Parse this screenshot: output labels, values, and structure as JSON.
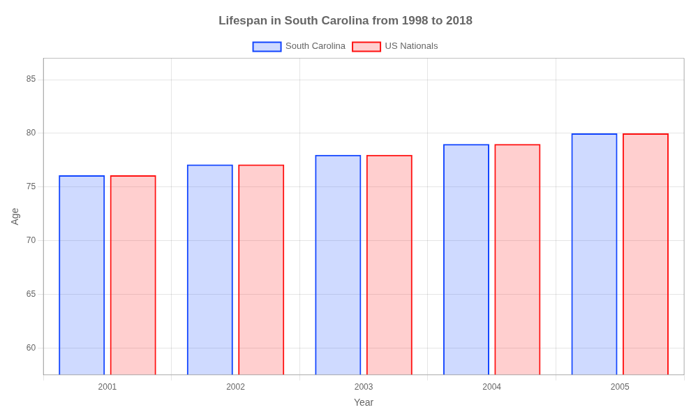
{
  "chart_data": {
    "type": "bar",
    "title": "Lifespan in South Carolina from 1998 to 2018",
    "xlabel": "Year",
    "ylabel": "Age",
    "categories": [
      "2001",
      "2002",
      "2003",
      "2004",
      "2005"
    ],
    "series": [
      {
        "name": "South Carolina",
        "color": "#1144ff",
        "values": [
          76.1,
          77.1,
          78.0,
          79.0,
          80.0
        ]
      },
      {
        "name": "US Nationals",
        "color": "#ff1111",
        "values": [
          76.1,
          77.1,
          78.0,
          79.0,
          80.0
        ]
      }
    ],
    "ylim": [
      57.5,
      87
    ],
    "yticks": [
      60,
      65,
      70,
      75,
      80,
      85
    ],
    "grid": true,
    "legend": "top"
  }
}
